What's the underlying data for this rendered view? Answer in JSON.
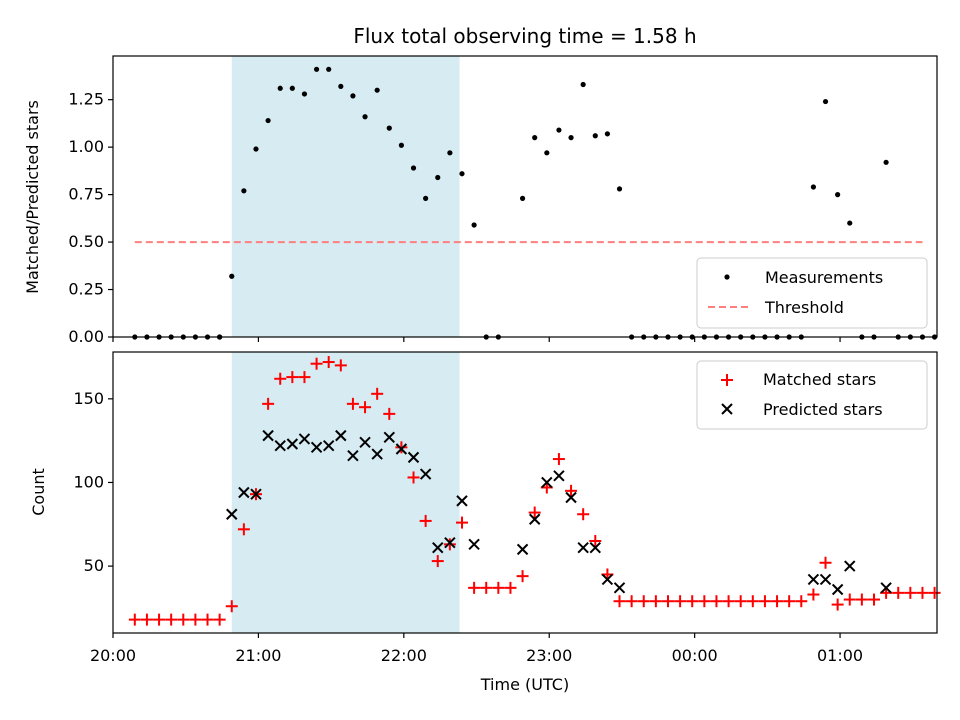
{
  "chart_data": [
    {
      "type": "scatter",
      "title": "Flux total observing time = 1.58 h",
      "xlabel": "",
      "ylabel": "Matched/Predicted stars",
      "xlim": [
        "20:00",
        "01:40"
      ],
      "ylim": [
        0,
        1.48
      ],
      "ticks_x": [
        "20:00",
        "21:00",
        "22:00",
        "23:00",
        "00:00",
        "01:00"
      ],
      "ticks_y": [
        "0.00",
        "0.25",
        "0.50",
        "0.75",
        "1.00",
        "1.25"
      ],
      "highlight_band": {
        "x": [
          "20:49",
          "22:23"
        ],
        "color": "#add8e6"
      },
      "legend": {
        "placement": "lower-right",
        "entries": [
          "Measurements",
          "Threshold"
        ]
      },
      "threshold": {
        "name": "Threshold",
        "value": 0.5,
        "x": [
          "20:09",
          "01:34"
        ],
        "color": "#ff7f7f"
      },
      "series": [
        {
          "name": "Measurements",
          "color": "#000000",
          "points": [
            [
              "20:09",
              0
            ],
            [
              "20:14",
              0
            ],
            [
              "20:19",
              0
            ],
            [
              "20:24",
              0
            ],
            [
              "20:29",
              0
            ],
            [
              "20:34",
              0
            ],
            [
              "20:39",
              0
            ],
            [
              "20:44",
              0
            ],
            [
              "20:44",
              0
            ],
            [
              "20:49",
              0.32
            ],
            [
              "20:54",
              0.77
            ],
            [
              "20:59",
              0.99
            ],
            [
              "21:04",
              1.14
            ],
            [
              "21:09",
              1.31
            ],
            [
              "21:14",
              1.31
            ],
            [
              "21:19",
              1.28
            ],
            [
              "21:24",
              1.41
            ],
            [
              "21:29",
              1.41
            ],
            [
              "21:34",
              1.32
            ],
            [
              "21:39",
              1.27
            ],
            [
              "21:44",
              1.16
            ],
            [
              "21:49",
              1.3
            ],
            [
              "21:54",
              1.1
            ],
            [
              "21:59",
              1.01
            ],
            [
              "22:04",
              0.89
            ],
            [
              "22:09",
              0.73
            ],
            [
              "22:14",
              0.84
            ],
            [
              "22:19",
              0.97
            ],
            [
              "22:24",
              0.86
            ],
            [
              "22:29",
              0.59
            ],
            [
              "22:34",
              0
            ],
            [
              "22:39",
              0
            ],
            [
              "22:49",
              0.73
            ],
            [
              "22:54",
              1.05
            ],
            [
              "22:59",
              0.97
            ],
            [
              "23:04",
              1.09
            ],
            [
              "23:09",
              1.05
            ],
            [
              "23:14",
              1.33
            ],
            [
              "23:19",
              1.06
            ],
            [
              "23:24",
              1.07
            ],
            [
              "23:29",
              0.78
            ],
            [
              "23:34",
              0
            ],
            [
              "23:39",
              0
            ],
            [
              "23:44",
              0
            ],
            [
              "23:49",
              0
            ],
            [
              "23:54",
              0
            ],
            [
              "23:59",
              0
            ],
            [
              "00:04",
              0
            ],
            [
              "00:09",
              0
            ],
            [
              "00:14",
              0
            ],
            [
              "00:19",
              0
            ],
            [
              "00:24",
              0
            ],
            [
              "00:29",
              0
            ],
            [
              "00:34",
              0
            ],
            [
              "00:39",
              0
            ],
            [
              "00:44",
              0
            ],
            [
              "00:49",
              0.79
            ],
            [
              "00:54",
              1.24
            ],
            [
              "00:59",
              0.75
            ],
            [
              "01:04",
              0.6
            ],
            [
              "01:09",
              0
            ],
            [
              "01:14",
              0
            ],
            [
              "01:19",
              0.92
            ],
            [
              "01:24",
              0
            ],
            [
              "01:29",
              0
            ],
            [
              "01:34",
              0
            ],
            [
              "01:39",
              0
            ]
          ]
        }
      ]
    },
    {
      "type": "scatter",
      "title": "",
      "xlabel": "Time (UTC)",
      "ylabel": "Count",
      "xlim": [
        "20:00",
        "01:40"
      ],
      "ylim": [
        10,
        178
      ],
      "ticks_x": [
        "20:00",
        "21:00",
        "22:00",
        "23:00",
        "00:00",
        "01:00"
      ],
      "ticks_y": [
        "50",
        "100",
        "150"
      ],
      "highlight_band": {
        "x": [
          "20:49",
          "22:23"
        ],
        "color": "#add8e6"
      },
      "legend": {
        "placement": "upper-right",
        "entries": [
          "Matched stars",
          "Predicted stars"
        ]
      },
      "series": [
        {
          "name": "Matched stars",
          "marker": "plus",
          "color": "#ff0000",
          "points": [
            [
              "20:09",
              18
            ],
            [
              "20:14",
              18
            ],
            [
              "20:19",
              18
            ],
            [
              "20:24",
              18
            ],
            [
              "20:29",
              18
            ],
            [
              "20:34",
              18
            ],
            [
              "20:39",
              18
            ],
            [
              "20:44",
              18
            ],
            [
              "20:49",
              26
            ],
            [
              "20:54",
              72
            ],
            [
              "20:59",
              93
            ],
            [
              "21:04",
              147
            ],
            [
              "21:09",
              162
            ],
            [
              "21:14",
              163
            ],
            [
              "21:19",
              163
            ],
            [
              "21:24",
              171
            ],
            [
              "21:29",
              172
            ],
            [
              "21:34",
              170
            ],
            [
              "21:39",
              147
            ],
            [
              "21:44",
              145
            ],
            [
              "21:49",
              153
            ],
            [
              "21:54",
              141
            ],
            [
              "21:59",
              121
            ],
            [
              "22:04",
              103
            ],
            [
              "22:09",
              77
            ],
            [
              "22:14",
              53
            ],
            [
              "22:19",
              63
            ],
            [
              "22:24",
              76
            ],
            [
              "22:29",
              37
            ],
            [
              "22:34",
              37
            ],
            [
              "22:39",
              37
            ],
            [
              "22:44",
              37
            ],
            [
              "22:49",
              44
            ],
            [
              "22:54",
              82
            ],
            [
              "22:59",
              97
            ],
            [
              "23:04",
              114
            ],
            [
              "23:09",
              95
            ],
            [
              "23:14",
              81
            ],
            [
              "23:19",
              65
            ],
            [
              "23:24",
              45
            ],
            [
              "23:29",
              29
            ],
            [
              "23:34",
              29
            ],
            [
              "23:39",
              29
            ],
            [
              "23:44",
              29
            ],
            [
              "23:49",
              29
            ],
            [
              "23:54",
              29
            ],
            [
              "23:59",
              29
            ],
            [
              "00:04",
              29
            ],
            [
              "00:09",
              29
            ],
            [
              "00:14",
              29
            ],
            [
              "00:19",
              29
            ],
            [
              "00:24",
              29
            ],
            [
              "00:29",
              29
            ],
            [
              "00:34",
              29
            ],
            [
              "00:39",
              29
            ],
            [
              "00:44",
              29
            ],
            [
              "00:49",
              33
            ],
            [
              "00:54",
              52
            ],
            [
              "00:59",
              27
            ],
            [
              "01:04",
              30
            ],
            [
              "01:09",
              30
            ],
            [
              "01:14",
              30
            ],
            [
              "01:19",
              34
            ],
            [
              "01:24",
              34
            ],
            [
              "01:29",
              34
            ],
            [
              "01:34",
              34
            ],
            [
              "01:39",
              34
            ]
          ]
        },
        {
          "name": "Predicted stars",
          "marker": "x",
          "color": "#000000",
          "points": [
            [
              "20:49",
              81
            ],
            [
              "20:54",
              94
            ],
            [
              "20:59",
              93
            ],
            [
              "21:04",
              128
            ],
            [
              "21:09",
              122
            ],
            [
              "21:14",
              123
            ],
            [
              "21:19",
              126
            ],
            [
              "21:24",
              121
            ],
            [
              "21:29",
              122
            ],
            [
              "21:34",
              128
            ],
            [
              "21:39",
              116
            ],
            [
              "21:44",
              124
            ],
            [
              "21:49",
              117
            ],
            [
              "21:54",
              127
            ],
            [
              "21:59",
              120
            ],
            [
              "22:04",
              115
            ],
            [
              "22:09",
              105
            ],
            [
              "22:14",
              61
            ],
            [
              "22:19",
              64
            ],
            [
              "22:24",
              89
            ],
            [
              "22:29",
              63
            ],
            [
              "22:49",
              60
            ],
            [
              "22:54",
              78
            ],
            [
              "22:59",
              100
            ],
            [
              "23:04",
              104
            ],
            [
              "23:09",
              91
            ],
            [
              "23:14",
              61
            ],
            [
              "23:19",
              61
            ],
            [
              "23:24",
              42
            ],
            [
              "23:29",
              37
            ],
            [
              "00:49",
              42
            ],
            [
              "00:54",
              42
            ],
            [
              "00:59",
              36
            ],
            [
              "01:04",
              50
            ],
            [
              "01:19",
              37
            ]
          ]
        }
      ]
    }
  ]
}
